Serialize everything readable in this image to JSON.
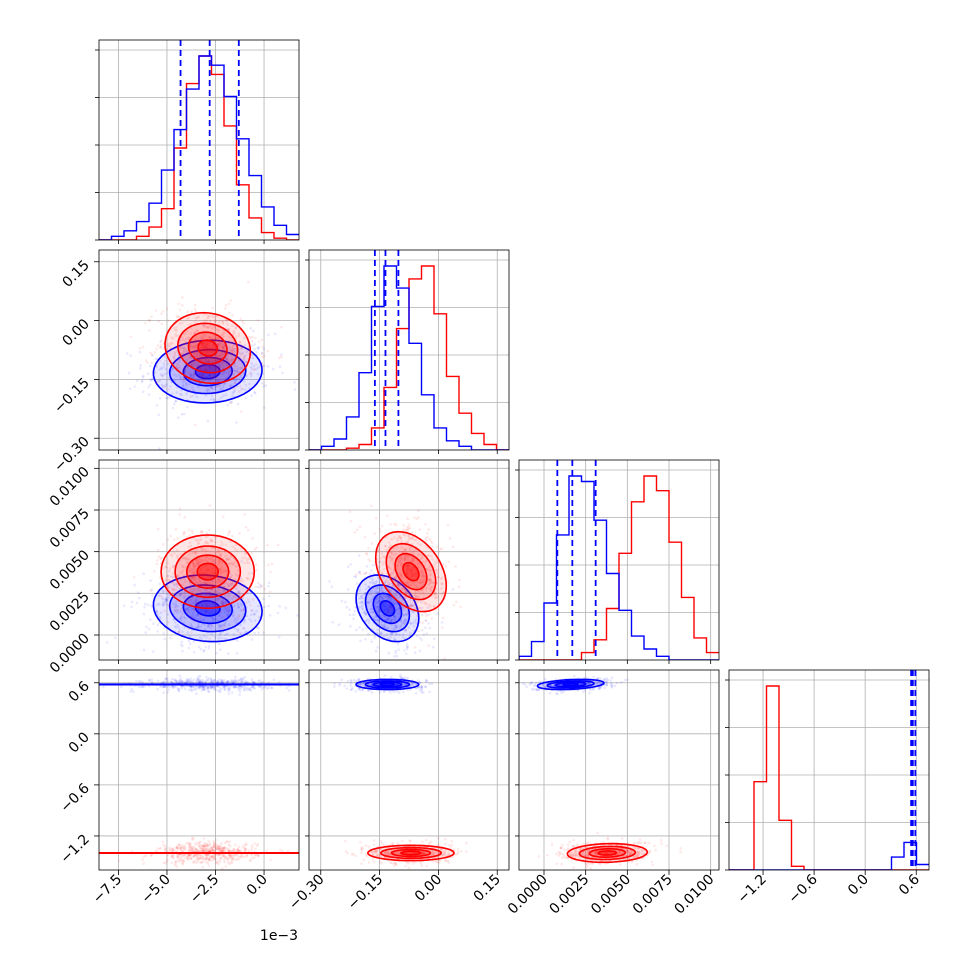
{
  "chart_data": {
    "type": "corner",
    "colors": {
      "a": "#ff0000",
      "b": "#0000ff"
    },
    "grid": true,
    "params": [
      {
        "range": [
          -0.0085,
          0.0018
        ],
        "ticks": [
          -0.0075,
          -0.005,
          -0.0025,
          0.0
        ],
        "ticklabels": [
          "−7.5",
          "−5.0",
          "−2.5",
          "0.0"
        ],
        "offset": "1e−3"
      },
      {
        "range": [
          -0.33,
          0.18
        ],
        "ticks": [
          -0.3,
          -0.15,
          0.0,
          0.15
        ],
        "ticklabels": [
          "−0.30",
          "−0.15",
          "0.00",
          "0.15"
        ]
      },
      {
        "range": [
          -0.0015,
          0.0105
        ],
        "ticks": [
          0.0,
          0.0025,
          0.005,
          0.0075,
          0.01
        ],
        "ticklabels": [
          "0.0000",
          "0.0025",
          "0.0050",
          "0.0075",
          "0.0100"
        ]
      },
      {
        "range": [
          -1.6,
          0.75
        ],
        "ticks": [
          -1.2,
          -0.6,
          0.0,
          0.6
        ],
        "ticklabels": [
          "−1.2",
          "−0.6",
          "0.0",
          "0.6"
        ]
      }
    ],
    "quantiles": [
      [
        -0.0043,
        -0.0028,
        -0.0013
      ],
      [
        -0.162,
        -0.135,
        -0.102
      ],
      [
        0.0008,
        0.0017,
        0.0031
      ],
      [
        0.54,
        0.56,
        0.59
      ]
    ],
    "series": [
      {
        "color": "#ff0000",
        "mean": [
          -0.0029,
          -0.07,
          0.0038,
          -1.4
        ],
        "sd": [
          0.0011,
          0.045,
          0.0012,
          0.055
        ],
        "corr": {
          "0-1": -0.1,
          "0-2": 0.0,
          "1-2": -0.35,
          "0-3": 0.0,
          "1-3": 0.0,
          "2-3": 0.1
        },
        "hist": [
          [
            0,
            0,
            0,
            0.02,
            0.07,
            0.17,
            0.5,
            0.85,
            1.0,
            0.9,
            0.62,
            0.3,
            0.12,
            0.04,
            0.01,
            0.0
          ],
          [
            0,
            0,
            0,
            0.01,
            0.03,
            0.12,
            0.34,
            0.66,
            0.93,
            1.0,
            0.74,
            0.4,
            0.2,
            0.09,
            0.03,
            0.0
          ],
          [
            0,
            0,
            0,
            0,
            0,
            0.04,
            0.11,
            0.28,
            0.58,
            0.86,
            1.0,
            0.92,
            0.64,
            0.34,
            0.12,
            0.04
          ],
          [
            0,
            0,
            0.48,
            1.0,
            0.27,
            0.02,
            0,
            0,
            0,
            0,
            0,
            0,
            0,
            0,
            0,
            0
          ]
        ]
      },
      {
        "color": "#0000ff",
        "mean": [
          -0.0029,
          -0.13,
          0.0016,
          0.58
        ],
        "sd": [
          0.0014,
          0.04,
          0.001,
          0.03
        ],
        "corr": {
          "0-1": 0.05,
          "0-2": -0.1,
          "1-2": -0.3,
          "0-3": 0.0,
          "1-3": 0.0,
          "2-3": 0.3
        },
        "hist": [
          [
            0,
            0.02,
            0.05,
            0.1,
            0.2,
            0.38,
            0.6,
            0.82,
            1.0,
            0.95,
            0.78,
            0.55,
            0.35,
            0.18,
            0.08,
            0.03
          ],
          [
            0,
            0.02,
            0.06,
            0.18,
            0.42,
            0.78,
            1.0,
            0.88,
            0.58,
            0.3,
            0.12,
            0.05,
            0.02,
            0,
            0,
            0
          ],
          [
            0.02,
            0.1,
            0.31,
            0.68,
            1.0,
            0.97,
            0.76,
            0.47,
            0.27,
            0.13,
            0.06,
            0.02,
            0,
            0,
            0,
            0
          ],
          [
            0,
            0,
            0,
            0,
            0,
            0,
            0,
            0,
            0,
            0,
            0,
            0,
            0,
            0.07,
            0.15,
            0.03
          ]
        ]
      }
    ]
  }
}
